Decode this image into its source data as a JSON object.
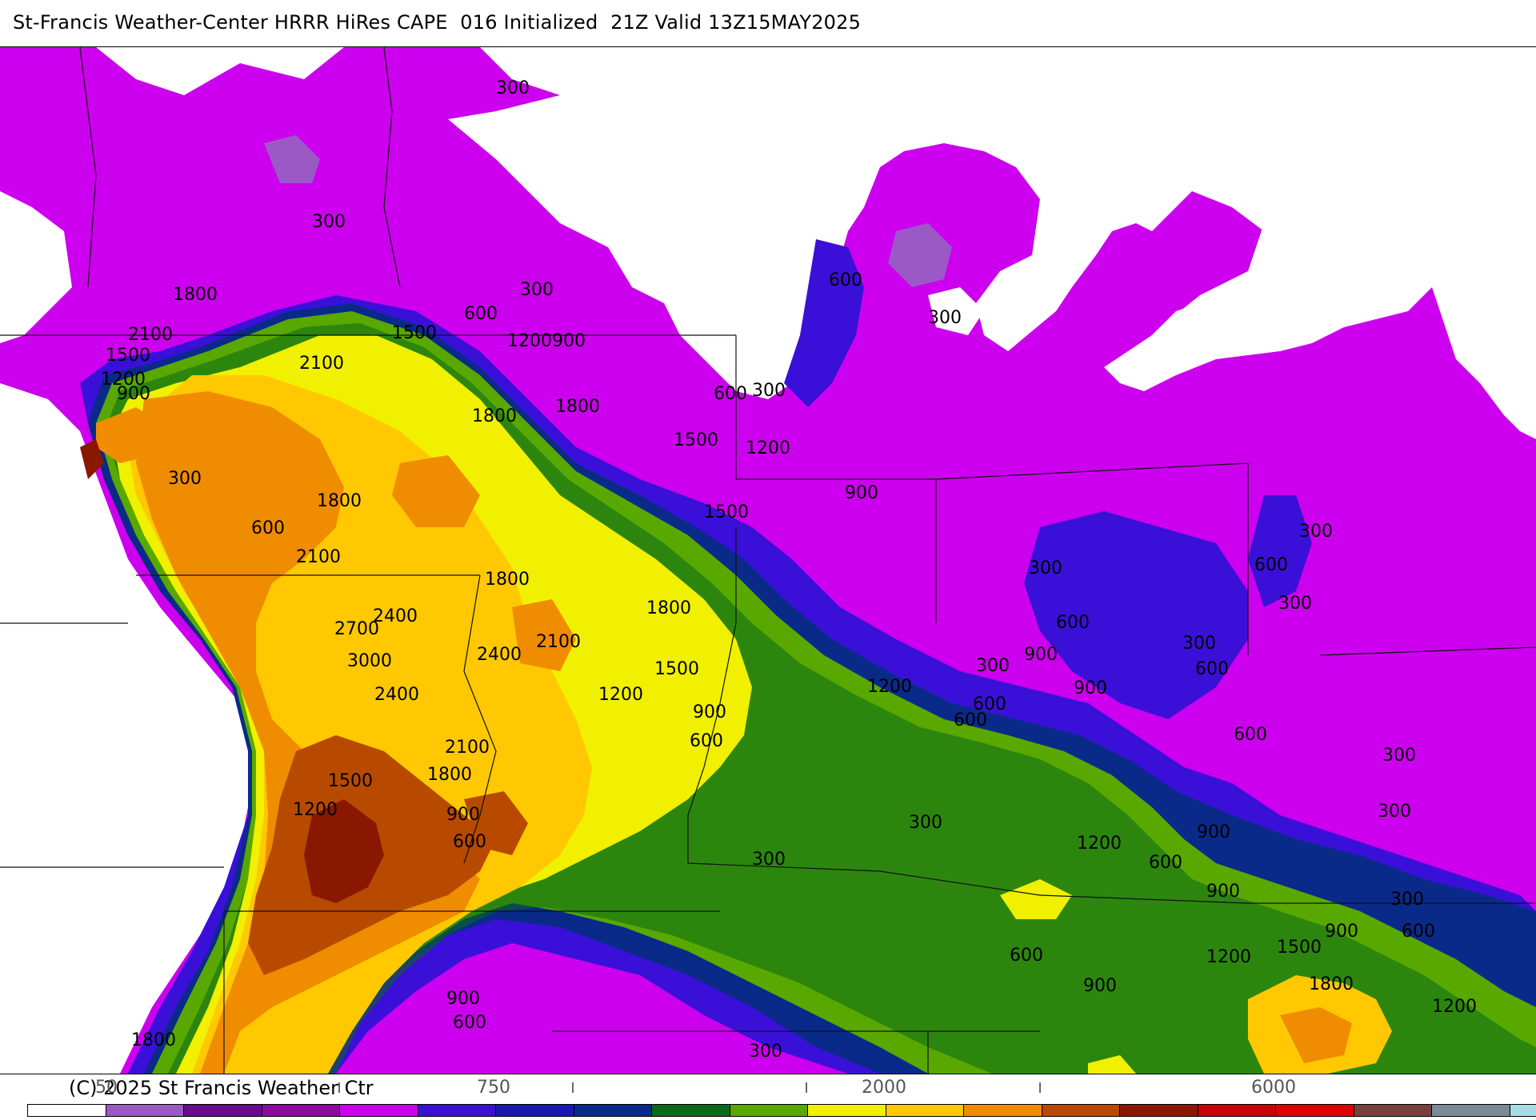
{
  "header": {
    "title": "St-Francis Weather-Center HRRR HiRes CAPE  016 Initialized  21Z Valid 13Z15MAY2025"
  },
  "footer": {
    "copyright": "(C) 2025 St Francis Weather Ctr"
  },
  "colorbar": {
    "colors": [
      "#ffffff",
      "#9b59c6",
      "#6a0a8c",
      "#8a0a9e",
      "#cc00ee",
      "#3a10d8",
      "#1a1ab0",
      "#0a2a8a",
      "#0a6a1a",
      "#58a800",
      "#f0f000",
      "#ffc800",
      "#f08c00",
      "#b84a00",
      "#8a1800",
      "#cc0000",
      "#e00000",
      "#7a4040",
      "#7a8a96",
      "#a8dce6"
    ],
    "tick_labels": [
      "50",
      "750",
      "2000",
      "6000"
    ],
    "minor_marks": [
      "I",
      "I",
      "I",
      "I"
    ]
  },
  "map": {
    "contour_labels": [
      "300",
      "300",
      "300",
      "600",
      "300",
      "600",
      "1800",
      "2100",
      "1500",
      "2100",
      "1500",
      "1200",
      "900",
      "1200",
      "900",
      "600",
      "300",
      "1800",
      "1800",
      "1500",
      "1200",
      "300",
      "1800",
      "600",
      "2100",
      "1500",
      "1800",
      "2400",
      "2700",
      "3000",
      "2400",
      "2400",
      "2100",
      "1800",
      "1500",
      "1200",
      "900",
      "600",
      "2100",
      "1500",
      "1800",
      "1200",
      "900",
      "600",
      "300",
      "300",
      "900",
      "600",
      "300",
      "900",
      "1200",
      "600",
      "900",
      "600",
      "300",
      "600",
      "300",
      "600",
      "300",
      "600",
      "300",
      "900",
      "1200",
      "900",
      "600",
      "300",
      "1500",
      "1800",
      "1200",
      "300",
      "300",
      "900",
      "600",
      "600",
      "900",
      "1200",
      "900",
      "600",
      "1800",
      "300"
    ]
  }
}
